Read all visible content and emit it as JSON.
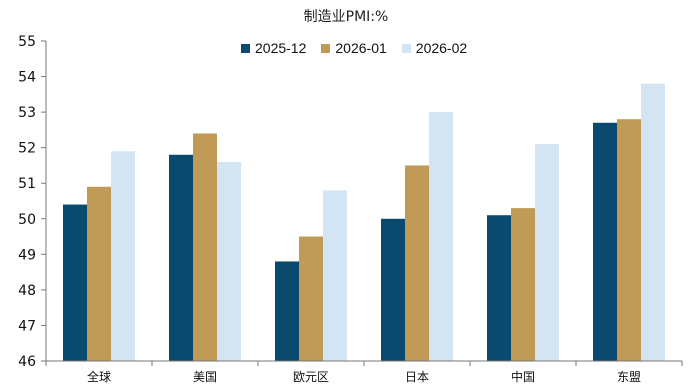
{
  "chart_data": {
    "type": "bar",
    "title": "制造业PMI:%",
    "xlabel": "",
    "ylabel": "",
    "ylim": [
      46,
      55
    ],
    "yticks": [
      46,
      47,
      48,
      49,
      50,
      51,
      52,
      53,
      54,
      55
    ],
    "grid": false,
    "legend_position": "top",
    "categories": [
      "全球",
      "美国",
      "欧元区",
      "日本",
      "中国",
      "东盟"
    ],
    "series": [
      {
        "name": "2025-12",
        "color": "#0a4a6e",
        "values": [
          50.4,
          51.8,
          48.8,
          50.0,
          50.1,
          52.7
        ]
      },
      {
        "name": "2026-01",
        "color": "#c09a57",
        "values": [
          50.9,
          52.4,
          49.5,
          51.5,
          50.3,
          52.8
        ]
      },
      {
        "name": "2026-02",
        "color": "#d3e4f3",
        "values": [
          51.9,
          51.6,
          50.8,
          53.0,
          52.1,
          53.8
        ]
      }
    ]
  }
}
